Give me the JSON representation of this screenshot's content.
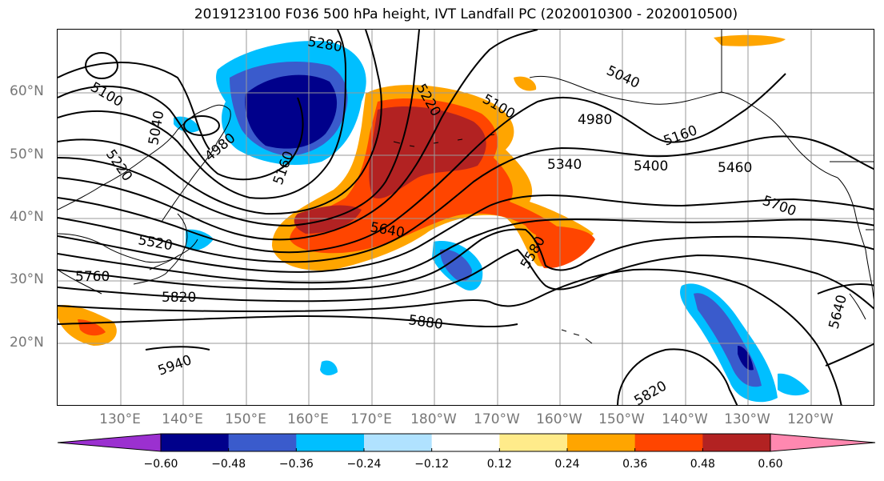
{
  "title": "2019123100 F036 500 hPa height, IVT Landfall PC (2020010300 - 2020010500)",
  "lat_labels": [
    "60°N",
    "50°N",
    "40°N",
    "30°N",
    "20°N"
  ],
  "lon_labels": [
    "130°E",
    "140°E",
    "150°E",
    "160°E",
    "170°E",
    "180°W",
    "170°W",
    "160°W",
    "150°W",
    "140°W",
    "130°W",
    "120°W"
  ],
  "contour_labels": [
    "5280",
    "5100",
    "5040",
    "4980",
    "5220",
    "5160",
    "5040",
    "5100",
    "4980",
    "5160",
    "5340",
    "5400",
    "5460",
    "5700",
    "5640",
    "5580",
    "5520",
    "5760",
    "5820",
    "5880",
    "5940",
    "5640",
    "5820",
    "5220"
  ],
  "colorbar": {
    "ticks": [
      "−0.60",
      "−0.48",
      "−0.36",
      "−0.24",
      "−0.12",
      "0.12",
      "0.24",
      "0.36",
      "0.48",
      "0.60"
    ],
    "colors": [
      "#9b30d0",
      "#00008b",
      "#3a5bcc",
      "#00bfff",
      "#b0e2ff",
      "#ffffff",
      "#ffeb8a",
      "#ffa500",
      "#ff4500",
      "#b22222",
      "#ff88b0"
    ]
  },
  "colors": {
    "contour": "#000000",
    "coast": "#000000",
    "grid": "#999999",
    "axis_label": "#777777"
  }
}
